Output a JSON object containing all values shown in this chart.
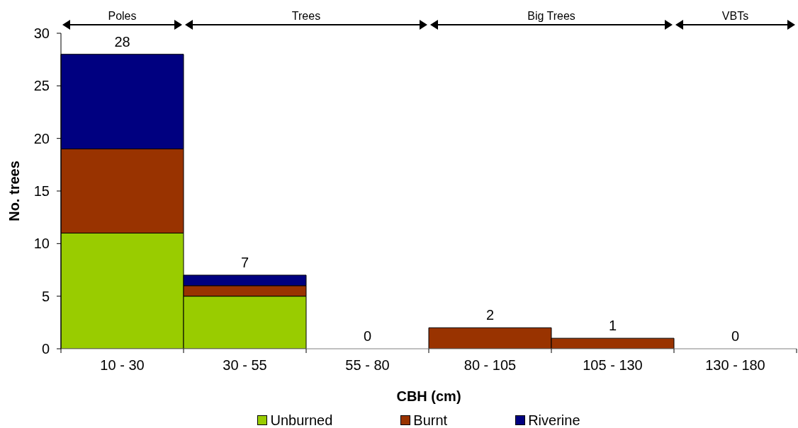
{
  "chart_data": {
    "type": "bar",
    "stacked": true,
    "xlabel": "CBH (cm)",
    "ylabel": "No. trees",
    "categories": [
      "10 - 30",
      "30 - 55",
      "55 - 80",
      "80 - 105",
      "105 - 130",
      "130 - 180"
    ],
    "series": [
      {
        "name": "Unburned",
        "color": "#99cc00",
        "values": [
          11,
          5,
          0,
          0,
          0,
          0
        ]
      },
      {
        "name": "Burnt",
        "color": "#993300",
        "values": [
          8,
          1,
          0,
          2,
          1,
          0
        ]
      },
      {
        "name": "Riverine",
        "color": "#000080",
        "values": [
          9,
          1,
          0,
          0,
          0,
          0
        ]
      }
    ],
    "totals": [
      "28",
      "7",
      "0",
      "2",
      "1",
      "0"
    ],
    "ylim": [
      0,
      30
    ],
    "yticks": [
      0,
      5,
      10,
      15,
      20,
      25,
      30
    ],
    "legend": "bottom",
    "annotations": [
      "Poles",
      "Trees",
      "Big Trees",
      "VBTs"
    ]
  }
}
